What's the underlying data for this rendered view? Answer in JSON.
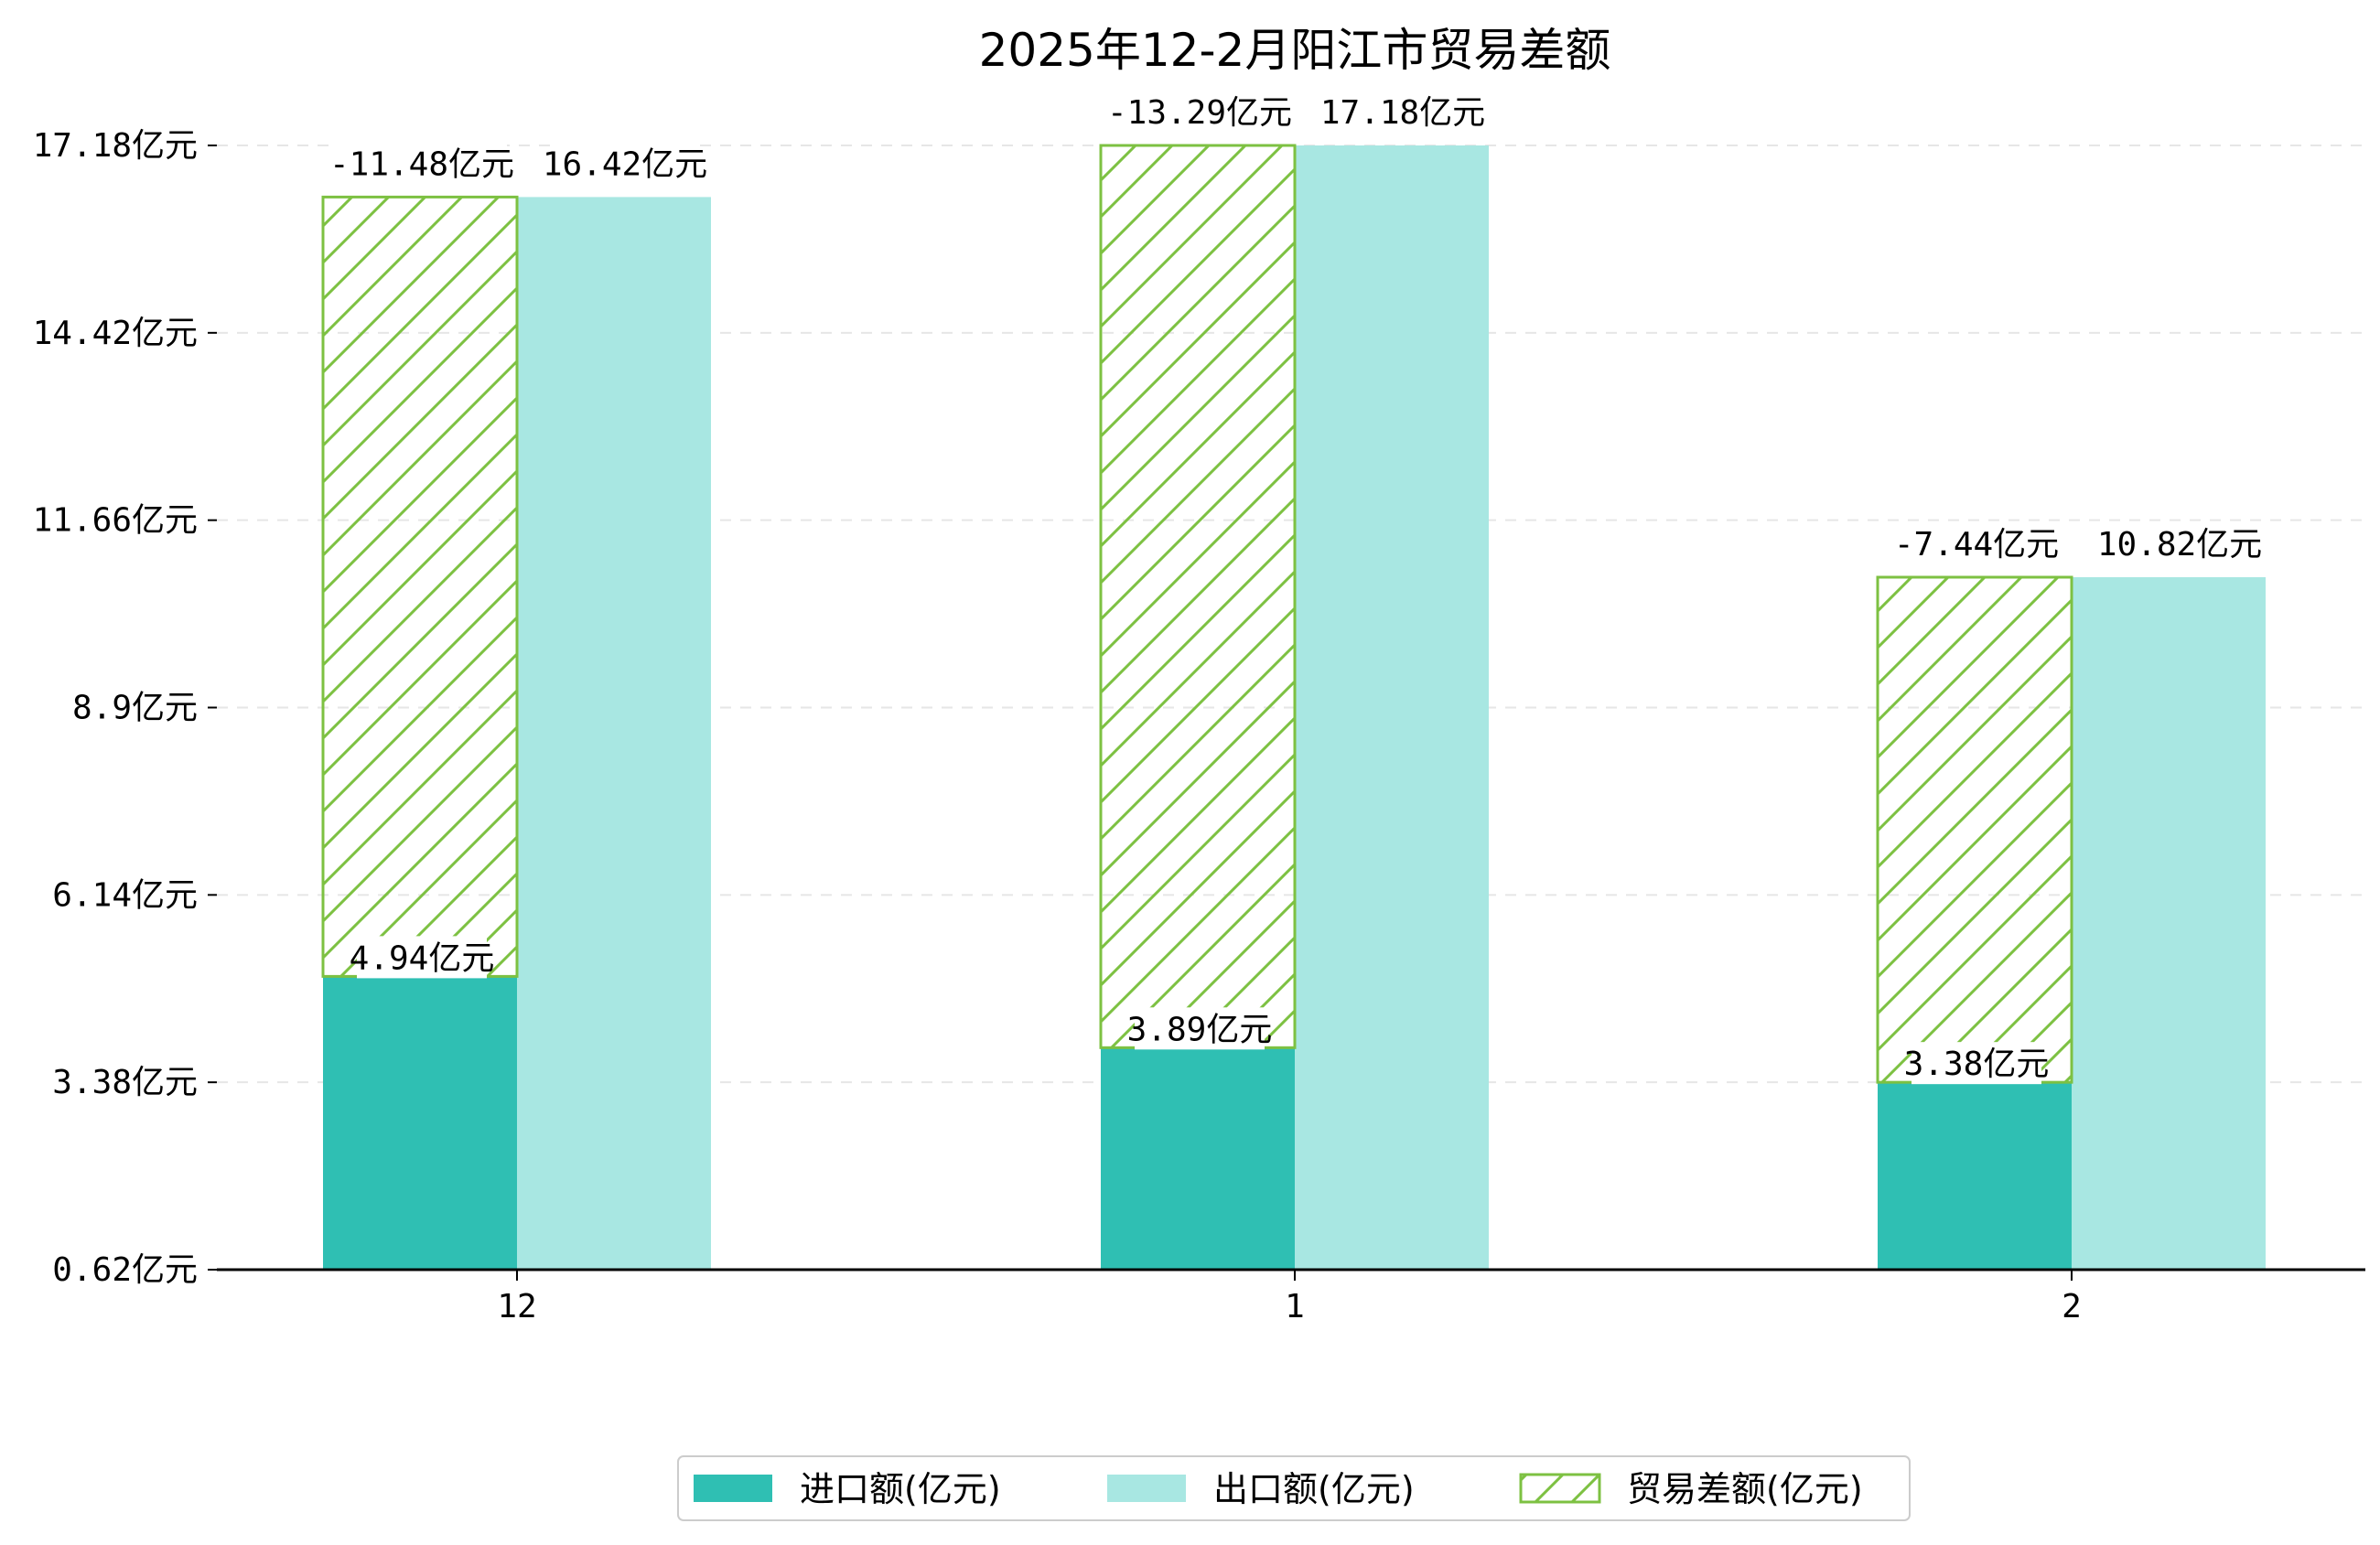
{
  "chart_data": {
    "type": "bar",
    "title": "2025年12-2月阳江市贸易差额",
    "categories": [
      "12",
      "1",
      "2"
    ],
    "y_ticks": [
      "0.62亿元",
      "3.38亿元",
      "6.14亿元",
      "8.9亿元",
      "11.66亿元",
      "14.42亿元",
      "17.18亿元"
    ],
    "ylim": [
      0.62,
      17.18
    ],
    "grid": true,
    "legend_position": "bottom-center",
    "series": [
      {
        "name": "进口额(亿元)",
        "values": [
          4.94,
          3.89,
          3.38
        ],
        "labels": [
          "4.94亿元",
          "3.89亿元",
          "3.38亿元"
        ],
        "color": "#2fbfb3"
      },
      {
        "name": "出口额(亿元)",
        "values": [
          16.42,
          17.18,
          10.82
        ],
        "labels": [
          "16.42亿元",
          "17.18亿元",
          "10.82亿元"
        ],
        "color": "#a8e7e2"
      },
      {
        "name": "贸易差额(亿元)",
        "values": [
          -11.48,
          -13.29,
          -7.44
        ],
        "labels": [
          "-11.48亿元",
          "-13.29亿元",
          "-7.44亿元"
        ],
        "color": "#7dc142",
        "style": "hatched"
      }
    ]
  }
}
